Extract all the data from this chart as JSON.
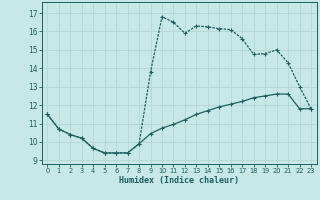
{
  "xlabel": "Humidex (Indice chaleur)",
  "background_color": "#c8e8e8",
  "grid_color": "#b8d8d8",
  "line_color": "#1a6060",
  "xlim": [
    -0.5,
    23.5
  ],
  "ylim": [
    8.8,
    17.6
  ],
  "yticks": [
    9,
    10,
    11,
    12,
    13,
    14,
    15,
    16,
    17
  ],
  "xticks": [
    0,
    1,
    2,
    3,
    4,
    5,
    6,
    7,
    8,
    9,
    10,
    11,
    12,
    13,
    14,
    15,
    16,
    17,
    18,
    19,
    20,
    21,
    22,
    23
  ],
  "curve1_x": [
    0,
    1,
    2,
    3,
    4,
    5,
    6,
    7,
    8,
    9,
    10,
    11,
    12,
    13,
    14,
    15,
    16,
    17,
    18,
    19,
    20,
    21,
    22,
    23
  ],
  "curve1_y": [
    11.5,
    10.7,
    10.4,
    10.2,
    9.65,
    9.4,
    9.4,
    9.4,
    9.9,
    13.8,
    16.8,
    16.5,
    15.9,
    16.3,
    16.25,
    16.15,
    16.1,
    15.6,
    14.75,
    14.8,
    15.0,
    14.3,
    13.0,
    11.8
  ],
  "curve2_x": [
    0,
    1,
    2,
    3,
    4,
    5,
    6,
    7,
    8,
    9,
    10,
    11,
    12,
    13,
    14,
    15,
    16,
    17,
    18,
    19,
    20,
    21,
    22,
    23
  ],
  "curve2_y": [
    11.5,
    10.7,
    10.4,
    10.2,
    9.65,
    9.4,
    9.4,
    9.4,
    9.9,
    10.45,
    10.75,
    10.95,
    11.2,
    11.5,
    11.7,
    11.9,
    12.05,
    12.2,
    12.4,
    12.5,
    12.6,
    12.6,
    11.8,
    11.8
  ]
}
